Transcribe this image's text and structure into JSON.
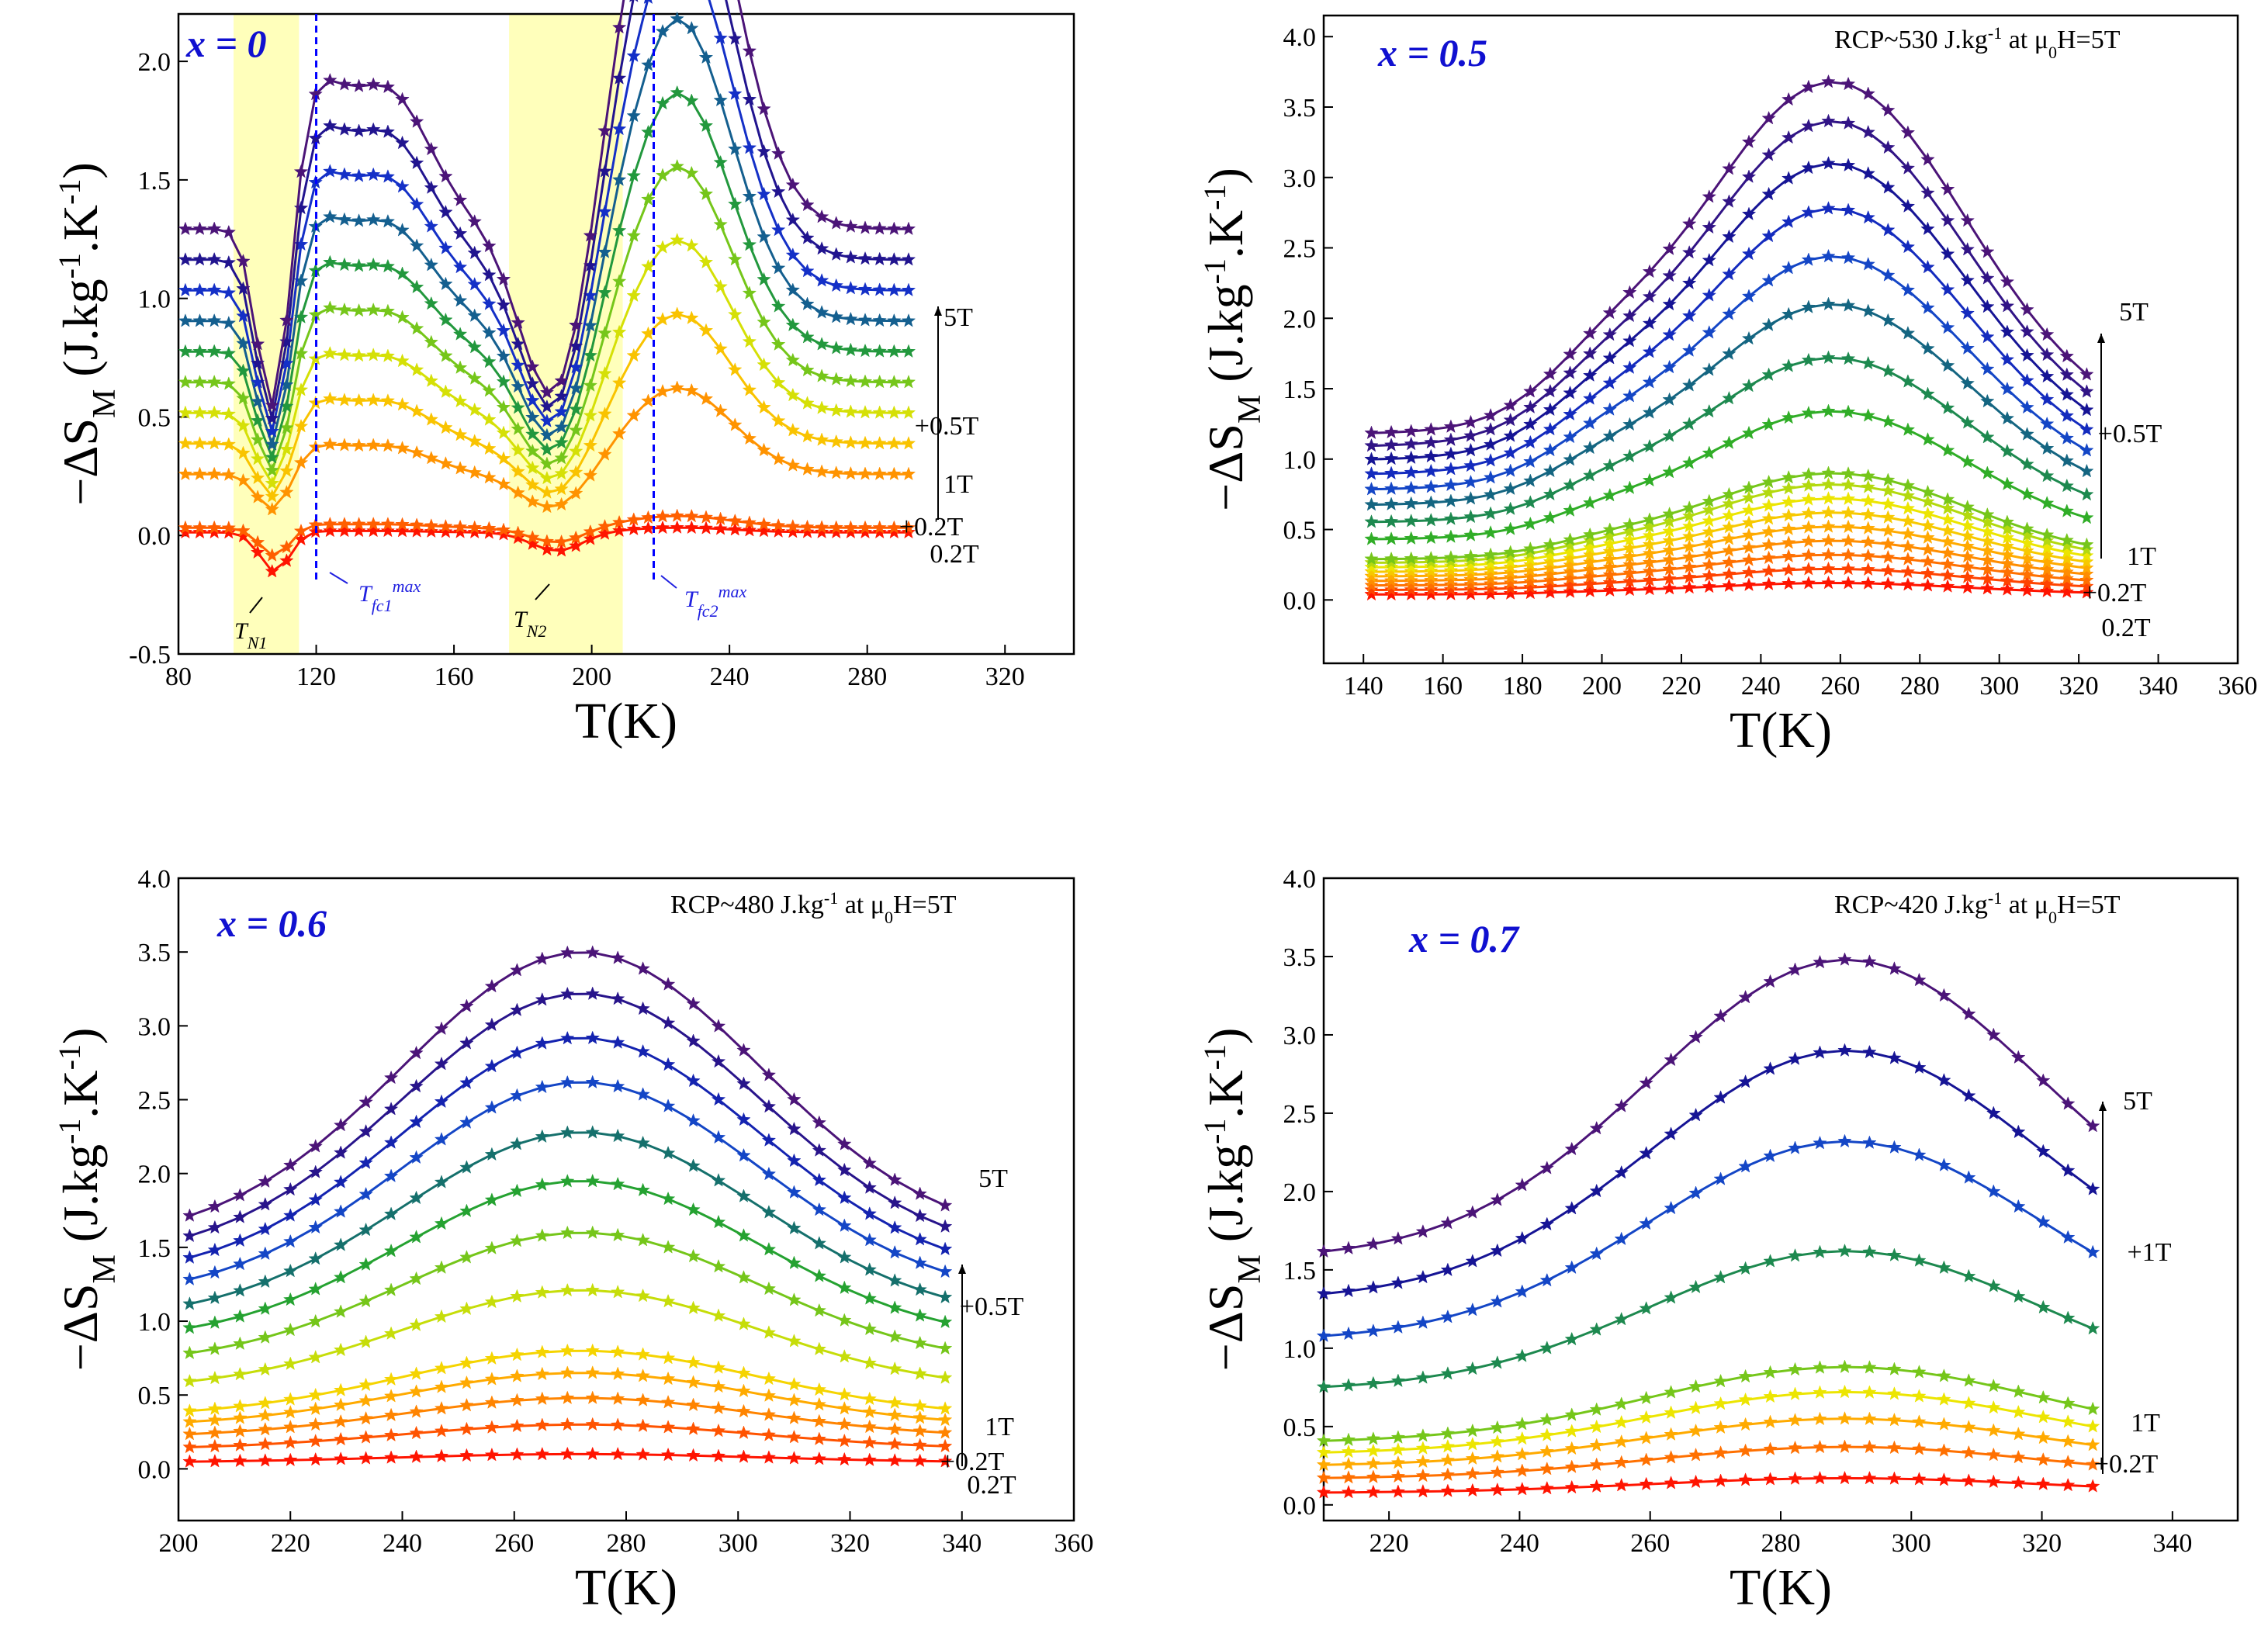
{
  "figure": {
    "xlabel": "T(K)",
    "ylabel": "−ΔS",
    "ylabel_sub": "M",
    "ylabel_units_a": " (J.kg",
    "ylabel_units_sup": "-1",
    "ylabel_units_b": ".K",
    "ylabel_units_c": ")"
  },
  "chart_data": [
    {
      "type": "line",
      "panel": "x = 0",
      "xlim": [
        80,
        340
      ],
      "ylim": [
        -0.5,
        2.2
      ],
      "xticks": [
        80,
        120,
        160,
        200,
        240,
        280,
        320
      ],
      "yticks": [
        -0.5,
        0.0,
        0.5,
        1.0,
        1.5,
        2.0
      ],
      "tick_labels_x": [
        "80",
        "120",
        "160",
        "200",
        "240",
        "280",
        "320"
      ],
      "tick_labels_y": [
        "-0.5",
        "0.0",
        "0.5",
        "1.0",
        "1.5",
        "2.0"
      ],
      "x_range": [
        82,
        295
      ],
      "num_series": 11,
      "amplitude_scale": [
        0.2,
        0.5,
        1.0,
        1.5,
        2.0,
        2.5,
        3.0,
        3.5,
        4.0,
        4.5,
        5.0
      ],
      "field_labels": [
        "5T",
        "+0.5T",
        "1T",
        "+0.2T",
        "0.2T"
      ],
      "shaded_ranges": [
        [
          96,
          115
        ],
        [
          176,
          209
        ]
      ],
      "dashed_lines_x": [
        120,
        218
      ],
      "annotations": {
        "tn1": "T",
        "tn1_sub": "N1",
        "tn2": "T",
        "tn2_sub": "N2",
        "tfc1": "T",
        "tfc1_sub": "fc1",
        "tfc1_sup": "max",
        "tfc2": "T",
        "tfc2_sub": "fc2",
        "tfc2_sup": "max"
      },
      "rcp": ""
    },
    {
      "type": "line",
      "panel": "x = 0.5",
      "xlim": [
        130,
        360
      ],
      "ylim": [
        -0.45,
        4.15
      ],
      "xticks": [
        140,
        160,
        180,
        200,
        220,
        240,
        260,
        280,
        300,
        320,
        340,
        360
      ],
      "yticks": [
        0.0,
        0.5,
        1.0,
        1.5,
        2.0,
        2.5,
        3.0,
        3.5,
        4.0
      ],
      "tick_labels_x": [
        "140",
        "160",
        "180",
        "200",
        "220",
        "240",
        "260",
        "280",
        "300",
        "320",
        "340",
        "360"
      ],
      "tick_labels_y": [
        "0.0",
        "0.5",
        "1.0",
        "1.5",
        "2.0",
        "2.5",
        "3.0",
        "3.5",
        "4.0"
      ],
      "x_range": [
        142,
        322
      ],
      "num_series": 21,
      "peak_values": [
        0.12,
        0.22,
        0.32,
        0.42,
        0.52,
        0.62,
        0.72,
        0.82,
        0.9,
        1.34,
        1.72,
        2.1,
        2.44,
        2.78,
        3.1,
        3.4,
        3.68
      ],
      "field_labels": [
        "5T",
        "+0.5T",
        "1T",
        "+0.2T",
        "0.2T"
      ],
      "rcp": "RCP~530 J.kg",
      "rcp_sup": "-1",
      "rcp_tail": " at μ",
      "rcp_sub": "0",
      "rcp_end": "H=5T"
    },
    {
      "type": "line",
      "panel": "x = 0.6",
      "xlim": [
        200,
        360
      ],
      "ylim": [
        -0.35,
        4.0
      ],
      "xticks": [
        200,
        220,
        240,
        260,
        280,
        300,
        320,
        340,
        360
      ],
      "yticks": [
        0.0,
        0.5,
        1.0,
        1.5,
        2.0,
        2.5,
        3.0,
        3.5,
        4.0
      ],
      "tick_labels_x": [
        "200",
        "220",
        "240",
        "260",
        "280",
        "300",
        "320",
        "340",
        "360"
      ],
      "tick_labels_y": [
        "0.0",
        "0.5",
        "1.0",
        "1.5",
        "2.0",
        "2.5",
        "3.0",
        "3.5",
        "4.0"
      ],
      "x_range": [
        202,
        338
      ],
      "peak_values": [
        0.1,
        0.3,
        0.48,
        0.65,
        0.8,
        1.21,
        1.6,
        1.95,
        2.28,
        2.62,
        2.92,
        3.22,
        3.5
      ],
      "field_labels": [
        "5T",
        "+0.5T",
        "1T",
        "+0.2T",
        "0.2T"
      ],
      "rcp": "RCP~480 J.kg",
      "rcp_sup": "-1",
      "rcp_tail": " at μ",
      "rcp_sub": "0",
      "rcp_end": "H=5T"
    },
    {
      "type": "line",
      "panel": "x = 0.7",
      "xlim": [
        210,
        350
      ],
      "ylim": [
        -0.1,
        4.0
      ],
      "xticks": [
        220,
        240,
        260,
        280,
        300,
        320,
        340
      ],
      "yticks": [
        0.0,
        0.5,
        1.0,
        1.5,
        2.0,
        2.5,
        3.0,
        3.5,
        4.0
      ],
      "tick_labels_x": [
        "220",
        "240",
        "260",
        "280",
        "300",
        "320",
        "340"
      ],
      "tick_labels_y": [
        "0.0",
        "0.5",
        "1.0",
        "1.5",
        "2.0",
        "2.5",
        "3.0",
        "3.5",
        "4.0"
      ],
      "x_range": [
        210,
        330
      ],
      "peak_values": [
        0.17,
        0.37,
        0.55,
        0.72,
        0.88,
        1.62,
        2.32,
        2.9,
        3.48
      ],
      "field_labels": [
        "5T",
        "+1T",
        "1T",
        "+0.2T"
      ],
      "rcp": "RCP~420 J.kg",
      "rcp_sup": "-1",
      "rcp_tail": " at μ",
      "rcp_sub": "0",
      "rcp_end": "H=5T"
    }
  ]
}
